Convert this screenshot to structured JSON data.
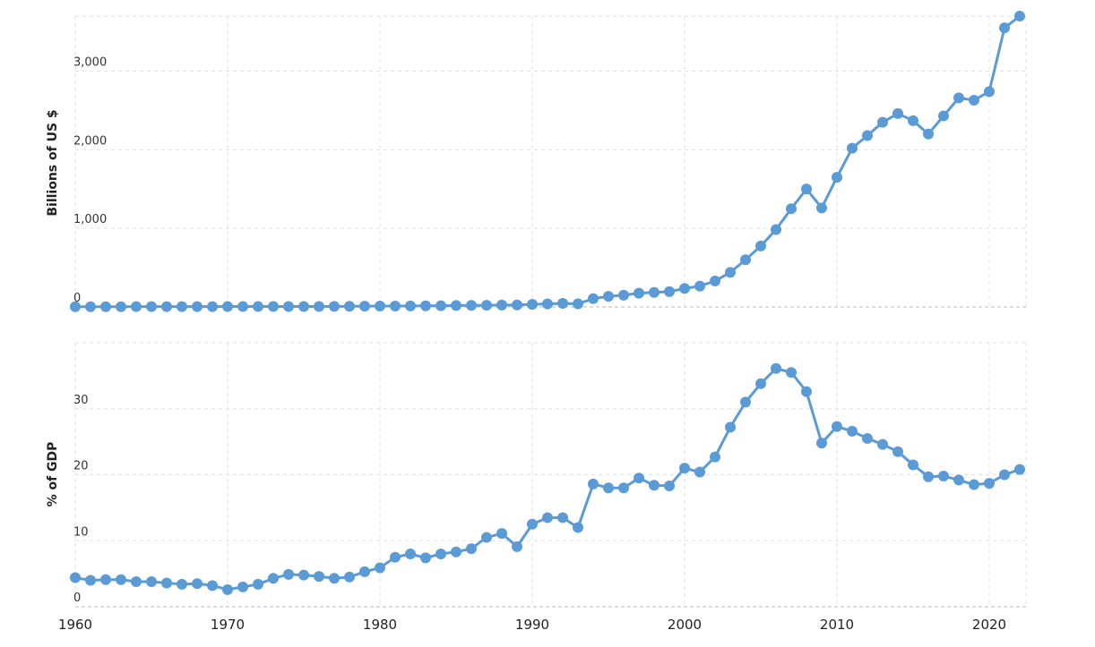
{
  "chart_data": [
    {
      "type": "line",
      "ylabel": "Billions of US $",
      "ylim": [
        0,
        3700
      ],
      "yticks": [
        0,
        1000,
        2000,
        3000
      ],
      "ytick_labels": [
        "0",
        "1,000",
        "2,000",
        "3,000"
      ],
      "color": "#5b9bd5",
      "x": [
        1960,
        1961,
        1962,
        1963,
        1964,
        1965,
        1966,
        1967,
        1968,
        1969,
        1970,
        1971,
        1972,
        1973,
        1974,
        1975,
        1976,
        1977,
        1978,
        1979,
        1980,
        1981,
        1982,
        1983,
        1984,
        1985,
        1986,
        1987,
        1988,
        1989,
        1990,
        1991,
        1992,
        1993,
        1994,
        1995,
        1996,
        1997,
        1998,
        1999,
        2000,
        2001,
        2002,
        2003,
        2004,
        2005,
        2006,
        2007,
        2008,
        2009,
        2010,
        2011,
        2012,
        2013,
        2014,
        2015,
        2016,
        2017,
        2018,
        2019,
        2020,
        2021,
        2022
      ],
      "values": [
        3,
        3,
        3,
        3,
        4,
        4,
        4,
        4,
        4,
        4,
        5,
        5,
        5,
        6,
        6,
        6,
        6,
        7,
        8,
        10,
        11,
        12,
        13,
        14,
        16,
        18,
        20,
        22,
        24,
        26,
        33,
        38,
        45,
        40,
        105,
        135,
        150,
        175,
        185,
        195,
        235,
        265,
        330,
        440,
        600,
        775,
        985,
        1250,
        1500,
        1260,
        1650,
        2020,
        2180,
        2350,
        2460,
        2370,
        2200,
        2430,
        2660,
        2630,
        2740,
        3550,
        3700
      ]
    },
    {
      "type": "line",
      "ylabel": "% of GDP",
      "ylim": [
        0,
        40
      ],
      "yticks": [
        0,
        10,
        20,
        30
      ],
      "ytick_labels": [
        "0",
        "10",
        "20",
        "30"
      ],
      "color": "#5b9bd5",
      "x": [
        1960,
        1961,
        1962,
        1963,
        1964,
        1965,
        1966,
        1967,
        1968,
        1969,
        1970,
        1971,
        1972,
        1973,
        1974,
        1975,
        1976,
        1977,
        1978,
        1979,
        1980,
        1981,
        1982,
        1983,
        1984,
        1985,
        1986,
        1987,
        1988,
        1989,
        1990,
        1991,
        1992,
        1993,
        1994,
        1995,
        1996,
        1997,
        1998,
        1999,
        2000,
        2001,
        2002,
        2003,
        2004,
        2005,
        2006,
        2007,
        2008,
        2009,
        2010,
        2011,
        2012,
        2013,
        2014,
        2015,
        2016,
        2017,
        2018,
        2019,
        2020,
        2021,
        2022
      ],
      "values": [
        4.4,
        4.0,
        4.1,
        4.1,
        3.8,
        3.8,
        3.6,
        3.4,
        3.5,
        3.2,
        2.6,
        3.0,
        3.4,
        4.3,
        4.9,
        4.8,
        4.6,
        4.3,
        4.5,
        5.3,
        5.9,
        7.5,
        8.0,
        7.4,
        8.0,
        8.3,
        8.8,
        10.5,
        11.1,
        9.1,
        12.5,
        13.5,
        13.5,
        12.0,
        18.6,
        18.0,
        18.0,
        19.5,
        18.4,
        18.3,
        21.0,
        20.4,
        22.7,
        27.2,
        31.0,
        33.8,
        36.1,
        35.5,
        32.6,
        24.8,
        27.3,
        26.6,
        25.5,
        24.6,
        23.5,
        21.5,
        19.7,
        19.8,
        19.2,
        18.5,
        18.7,
        20.0,
        20.8
      ]
    }
  ],
  "x_axis": {
    "ticks": [
      1960,
      1970,
      1980,
      1990,
      2000,
      2010,
      2020
    ],
    "tick_labels": [
      "1960",
      "1970",
      "1980",
      "1990",
      "2000",
      "2010",
      "2020"
    ],
    "xlim": [
      1960,
      2022
    ]
  }
}
